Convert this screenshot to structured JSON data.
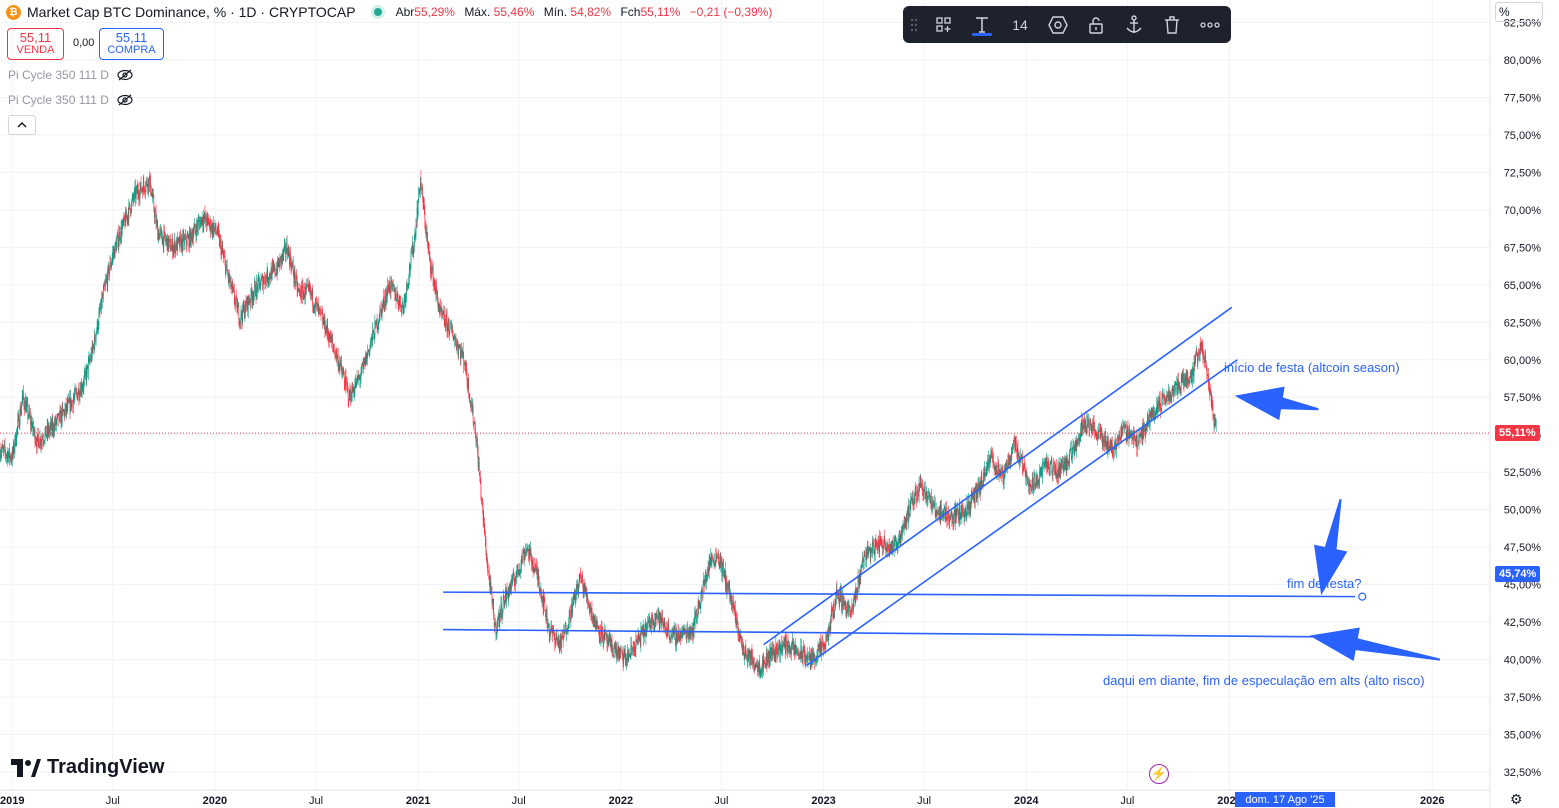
{
  "header": {
    "title": "Market Cap BTC Dominance, % · 1D · CRYPTOCAP",
    "ohlc": [
      {
        "label": "Abr",
        "value": "55,29%"
      },
      {
        "label": "Máx.",
        "value": "55,46%"
      },
      {
        "label": "Mín.",
        "value": "54,82%"
      },
      {
        "label": "Fch",
        "value": "55,11%"
      },
      {
        "label": "",
        "value": "−0,21 (−0,39%)"
      }
    ],
    "sell_price": "55,11",
    "sell_label": "VENDA",
    "spread": "0,00",
    "buy_price": "55,11",
    "buy_label": "COMPRA",
    "indicators": [
      "Pi Cycle 350 111 D",
      "Pi Cycle 350 111 D"
    ]
  },
  "toolbar": {
    "font_size": "14",
    "items": [
      "grip-icon",
      "add-object-icon",
      "text-icon",
      "font-size",
      "shape-icon",
      "unlock-icon",
      "anchor-icon",
      "trash-icon",
      "more-icon"
    ]
  },
  "scale_box": "%",
  "price_tags": {
    "current": "55,11%",
    "current_color": "#f23645",
    "level": "45,74%",
    "level_color": "#2962ff"
  },
  "annotations": {
    "altseason": "início de festa (altcoin season)",
    "end": "fim de festa?",
    "below": "daqui em diante, fim de especulação em alts (alto risco)"
  },
  "date_cursor": "dom. 17 Ago '25",
  "logo": "TradingView",
  "chart_data": {
    "type": "candlestick",
    "symbol": "Market Cap BTC Dominance",
    "unit": "%",
    "interval": "1D",
    "y_ticks": [
      "82,50%",
      "80,00%",
      "77,50%",
      "75,00%",
      "72,50%",
      "70,00%",
      "67,50%",
      "65,00%",
      "62,50%",
      "60,00%",
      "57,50%",
      "55,00%",
      "52,50%",
      "50,00%",
      "47,50%",
      "45,00%",
      "42,50%",
      "40,00%",
      "37,50%",
      "35,00%",
      "32,50%"
    ],
    "ylim": [
      32.5,
      82.5
    ],
    "x_ticks": [
      "2019",
      "Jul",
      "2020",
      "Jul",
      "2021",
      "Jul",
      "2022",
      "Jul",
      "2023",
      "Jul",
      "2024",
      "Jul",
      "2025",
      "2026"
    ],
    "bold_ticks": [
      "2019",
      "2020",
      "2021",
      "2022",
      "2023",
      "2024",
      "2025",
      "2026"
    ],
    "series": [
      {
        "values": [
          [
            "2018-12-10",
            54.0
          ],
          [
            "2019-01-01",
            53.5
          ],
          [
            "2019-01-20",
            57.5
          ],
          [
            "2019-02-15",
            54.5
          ],
          [
            "2019-03-15",
            55.5
          ],
          [
            "2019-04-15",
            57.0
          ],
          [
            "2019-05-10",
            58.5
          ],
          [
            "2019-05-25",
            60.5
          ],
          [
            "2019-06-15",
            64.5
          ],
          [
            "2019-07-01",
            67.0
          ],
          [
            "2019-07-15",
            68.5
          ],
          [
            "2019-08-10",
            71.0
          ],
          [
            "2019-09-05",
            72.0
          ],
          [
            "2019-09-20",
            68.5
          ],
          [
            "2019-10-15",
            67.5
          ],
          [
            "2019-11-15",
            68.0
          ],
          [
            "2019-12-10",
            69.5
          ],
          [
            "2020-01-05",
            68.5
          ],
          [
            "2020-01-25",
            65.5
          ],
          [
            "2020-02-15",
            62.8
          ],
          [
            "2020-03-10",
            64.5
          ],
          [
            "2020-04-01",
            65.5
          ],
          [
            "2020-04-20",
            66.0
          ],
          [
            "2020-05-10",
            67.5
          ],
          [
            "2020-05-30",
            64.5
          ],
          [
            "2020-06-20",
            64.5
          ],
          [
            "2020-07-20",
            62.0
          ],
          [
            "2020-08-10",
            60.0
          ],
          [
            "2020-08-30",
            57.5
          ],
          [
            "2020-09-20",
            59.0
          ],
          [
            "2020-10-15",
            62.0
          ],
          [
            "2020-11-10",
            65.0
          ],
          [
            "2020-12-05",
            63.5
          ],
          [
            "2020-12-25",
            68.0
          ],
          [
            "2021-01-05",
            72.0
          ],
          [
            "2021-01-20",
            67.0
          ],
          [
            "2021-02-10",
            63.0
          ],
          [
            "2021-03-01",
            62.0
          ],
          [
            "2021-03-25",
            60.0
          ],
          [
            "2021-04-15",
            55.0
          ],
          [
            "2021-05-05",
            46.5
          ],
          [
            "2021-05-20",
            42.0
          ],
          [
            "2021-06-05",
            44.0
          ],
          [
            "2021-06-25",
            45.5
          ],
          [
            "2021-07-15",
            47.5
          ],
          [
            "2021-08-05",
            45.5
          ],
          [
            "2021-08-25",
            42.0
          ],
          [
            "2021-09-15",
            41.0
          ],
          [
            "2021-10-05",
            43.5
          ],
          [
            "2021-10-20",
            45.5
          ],
          [
            "2021-11-15",
            42.5
          ],
          [
            "2021-12-10",
            41.0
          ],
          [
            "2022-01-10",
            40.0
          ],
          [
            "2022-02-05",
            41.5
          ],
          [
            "2022-03-05",
            43.0
          ],
          [
            "2022-04-05",
            41.5
          ],
          [
            "2022-05-10",
            42.0
          ],
          [
            "2022-06-10",
            46.5
          ],
          [
            "2022-06-25",
            47.0
          ],
          [
            "2022-07-15",
            44.5
          ],
          [
            "2022-08-10",
            40.5
          ],
          [
            "2022-09-10",
            39.5
          ],
          [
            "2022-09-30",
            40.5
          ],
          [
            "2022-10-25",
            41.0
          ],
          [
            "2022-11-15",
            40.5
          ],
          [
            "2022-12-10",
            40.0
          ],
          [
            "2023-01-05",
            41.0
          ],
          [
            "2023-01-25",
            44.5
          ],
          [
            "2023-02-20",
            43.0
          ],
          [
            "2023-03-15",
            47.0
          ],
          [
            "2023-04-15",
            47.8
          ],
          [
            "2023-05-10",
            47.5
          ],
          [
            "2023-06-05",
            50.0
          ],
          [
            "2023-06-25",
            51.8
          ],
          [
            "2023-07-20",
            50.0
          ],
          [
            "2023-08-20",
            49.5
          ],
          [
            "2023-09-15",
            50.0
          ],
          [
            "2023-10-10",
            51.5
          ],
          [
            "2023-10-30",
            53.5
          ],
          [
            "2023-11-20",
            52.0
          ],
          [
            "2023-12-10",
            54.5
          ],
          [
            "2024-01-10",
            51.5
          ],
          [
            "2024-02-05",
            53.0
          ],
          [
            "2024-02-25",
            52.5
          ],
          [
            "2024-03-20",
            53.5
          ],
          [
            "2024-04-15",
            56.0
          ],
          [
            "2024-05-10",
            55.0
          ],
          [
            "2024-06-05",
            54.0
          ],
          [
            "2024-06-25",
            55.5
          ],
          [
            "2024-07-20",
            54.5
          ],
          [
            "2024-08-15",
            56.5
          ],
          [
            "2024-09-10",
            57.5
          ],
          [
            "2024-10-05",
            58.5
          ],
          [
            "2024-10-25",
            59.0
          ],
          [
            "2024-11-10",
            61.0
          ],
          [
            "2024-11-20",
            59.5
          ],
          [
            "2024-12-02",
            56.5
          ],
          [
            "2024-12-09",
            55.11
          ]
        ]
      }
    ],
    "last_price": 55.11,
    "channel_upper": [
      [
        "2022-09-15",
        41.0
      ],
      [
        "2025-01-05",
        63.5
      ]
    ],
    "channel_lower": [
      [
        "2022-12-01",
        39.6
      ],
      [
        "2025-01-15",
        60.0
      ]
    ],
    "hline_upper": [
      [
        "2021-02-15",
        44.5
      ],
      [
        "2025-08-15",
        44.2
      ]
    ],
    "hline_lower": [
      [
        "2021-02-15",
        42.0
      ],
      [
        "2025-08-15",
        41.5
      ]
    ],
    "date_range": [
      "2018-12-10",
      "2026-04-15"
    ]
  }
}
